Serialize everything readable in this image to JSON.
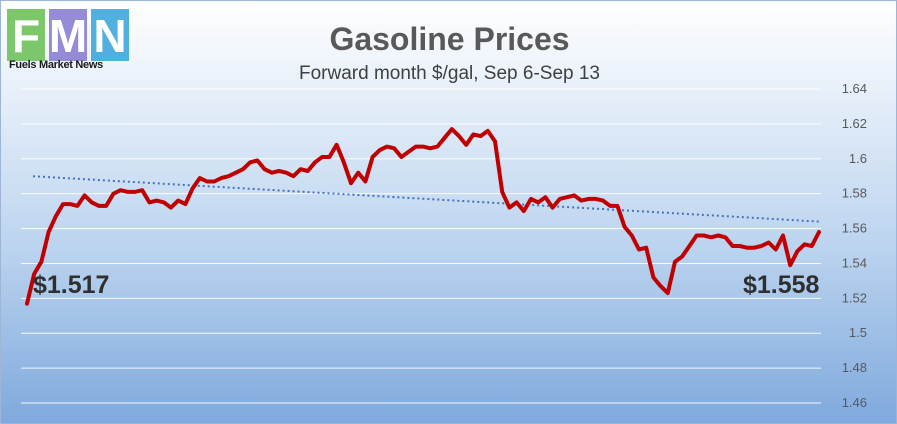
{
  "logo": {
    "letters": [
      "F",
      "M",
      "N"
    ],
    "tagline": "Fuels Market News",
    "colors": [
      "#6fc15b",
      "#8a7fd3",
      "#3fa7dc"
    ]
  },
  "chart_data": {
    "type": "line",
    "title": "Gasoline Prices",
    "subtitle": "Forward month $/gal, Sep 6-Sep 13",
    "xlabel": "",
    "ylabel": "",
    "ylim": [
      1.46,
      1.64
    ],
    "yticks": [
      "1.64",
      "1.62",
      "1.6",
      "1.58",
      "1.56",
      "1.54",
      "1.52",
      "1.5",
      "1.48",
      "1.46"
    ],
    "grid": true,
    "series": [
      {
        "color": "#c00000",
        "values": [
          1.517,
          1.534,
          1.541,
          1.558,
          1.567,
          1.574,
          1.574,
          1.573,
          1.579,
          1.575,
          1.573,
          1.573,
          1.58,
          1.582,
          1.581,
          1.581,
          1.582,
          1.575,
          1.576,
          1.575,
          1.572,
          1.576,
          1.574,
          1.583,
          1.589,
          1.587,
          1.587,
          1.589,
          1.59,
          1.592,
          1.594,
          1.598,
          1.599,
          1.594,
          1.592,
          1.593,
          1.592,
          1.59,
          1.594,
          1.593,
          1.598,
          1.601,
          1.601,
          1.608,
          1.598,
          1.586,
          1.592,
          1.587,
          1.601,
          1.605,
          1.607,
          1.606,
          1.601,
          1.604,
          1.607,
          1.607,
          1.606,
          1.607,
          1.612,
          1.617,
          1.613,
          1.608,
          1.614,
          1.613,
          1.616,
          1.61,
          1.581,
          1.572,
          1.575,
          1.57,
          1.577,
          1.575,
          1.578,
          1.572,
          1.577,
          1.578,
          1.579,
          1.576,
          1.577,
          1.577,
          1.576,
          1.573,
          1.573,
          1.561,
          1.556,
          1.548,
          1.549,
          1.532,
          1.527,
          1.523,
          1.541,
          1.544,
          1.55,
          1.556,
          1.556,
          1.555,
          1.556,
          1.555,
          1.55,
          1.55,
          1.549,
          1.549,
          1.55,
          1.552,
          1.548,
          1.556,
          1.539,
          1.547,
          1.551,
          1.55,
          1.558
        ]
      },
      {
        "color": "#4472c4",
        "style": "dotted",
        "trend": "linear",
        "values": [
          1.59,
          1.564
        ]
      }
    ],
    "annotations": [
      "$1.517",
      "$1.558"
    ]
  }
}
